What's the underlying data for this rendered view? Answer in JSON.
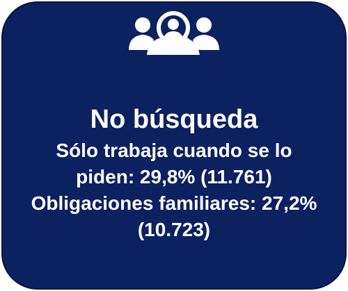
{
  "card": {
    "title": "No búsqueda",
    "items": [
      "Sólo trabaja cuando se lo piden: 29,8% (11.761)",
      "Obligaciones familiares: 27,2% (10.723)"
    ]
  }
}
